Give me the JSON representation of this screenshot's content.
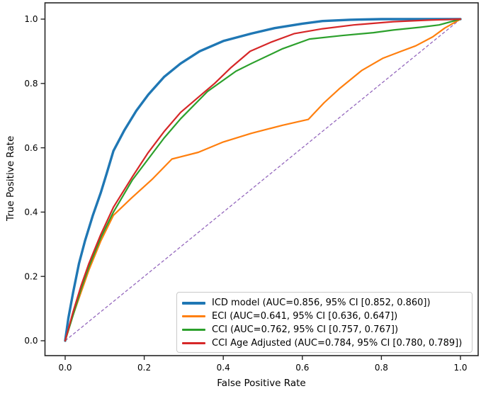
{
  "figure": {
    "background": "#ffffff",
    "spine_color": "#262626",
    "text_color": "#000000"
  },
  "chart_data": {
    "type": "line",
    "title": "",
    "xlabel": "False Positive Rate",
    "ylabel": "True Positive Rate",
    "xlim": [
      -0.05,
      1.05
    ],
    "ylim": [
      -0.05,
      1.05
    ],
    "grid": false,
    "legend_position": "lower right",
    "xticks": {
      "values": [
        0,
        0.2,
        0.4,
        0.6,
        0.8,
        1.0
      ],
      "labels": [
        "0.0",
        "0.2",
        "0.4",
        "0.6",
        "0.8",
        "1.0"
      ]
    },
    "yticks": {
      "values": [
        0,
        0.2,
        0.4,
        0.6,
        0.8,
        1.0
      ],
      "labels": [
        "0.0",
        "0.2",
        "0.4",
        "0.6",
        "0.8",
        "1.0"
      ]
    },
    "reference_line": {
      "name": "chance-diagonal",
      "style": "dashed",
      "color": "#9467bd",
      "line_width": 1.3,
      "points": [
        [
          0,
          0
        ],
        [
          1,
          1
        ]
      ]
    },
    "series": [
      {
        "name": "ICD model",
        "label": "ICD model (AUC=0.856, 95% CI [0.852, 0.860])",
        "auc": 0.856,
        "ci": [
          0.852,
          0.86
        ],
        "color": "#1f77b4",
        "line_width": 3.4,
        "points": [
          [
            0,
            0
          ],
          [
            0.008,
            0.07
          ],
          [
            0.02,
            0.15
          ],
          [
            0.035,
            0.24
          ],
          [
            0.05,
            0.31
          ],
          [
            0.07,
            0.39
          ],
          [
            0.09,
            0.46
          ],
          [
            0.105,
            0.52
          ],
          [
            0.122,
            0.59
          ],
          [
            0.15,
            0.655
          ],
          [
            0.18,
            0.715
          ],
          [
            0.21,
            0.765
          ],
          [
            0.25,
            0.82
          ],
          [
            0.292,
            0.862
          ],
          [
            0.34,
            0.9
          ],
          [
            0.4,
            0.932
          ],
          [
            0.471,
            0.955
          ],
          [
            0.53,
            0.972
          ],
          [
            0.6,
            0.986
          ],
          [
            0.651,
            0.994
          ],
          [
            0.72,
            0.998
          ],
          [
            0.8,
            1
          ],
          [
            1,
            1
          ]
        ]
      },
      {
        "name": "ECI",
        "label": "ECI (AUC=0.641, 95% CI [0.636, 0.647])",
        "auc": 0.641,
        "ci": [
          0.636,
          0.647
        ],
        "color": "#ff7f0e",
        "line_width": 2.2,
        "points": [
          [
            0,
            0
          ],
          [
            0.02,
            0.08
          ],
          [
            0.04,
            0.15
          ],
          [
            0.06,
            0.22
          ],
          [
            0.09,
            0.31
          ],
          [
            0.122,
            0.39
          ],
          [
            0.167,
            0.443
          ],
          [
            0.22,
            0.502
          ],
          [
            0.27,
            0.565
          ],
          [
            0.337,
            0.586
          ],
          [
            0.4,
            0.618
          ],
          [
            0.471,
            0.645
          ],
          [
            0.55,
            0.67
          ],
          [
            0.615,
            0.688
          ],
          [
            0.655,
            0.74
          ],
          [
            0.695,
            0.785
          ],
          [
            0.75,
            0.84
          ],
          [
            0.803,
            0.878
          ],
          [
            0.85,
            0.9
          ],
          [
            0.887,
            0.917
          ],
          [
            0.93,
            0.945
          ],
          [
            0.96,
            0.972
          ],
          [
            1,
            1
          ]
        ]
      },
      {
        "name": "CCI",
        "label": "CCI (AUC=0.762, 95% CI [0.757, 0.767])",
        "auc": 0.762,
        "ci": [
          0.757,
          0.767
        ],
        "color": "#2ca02c",
        "line_width": 2.2,
        "points": [
          [
            0,
            0
          ],
          [
            0.02,
            0.08
          ],
          [
            0.04,
            0.16
          ],
          [
            0.06,
            0.23
          ],
          [
            0.09,
            0.32
          ],
          [
            0.122,
            0.4
          ],
          [
            0.17,
            0.5
          ],
          [
            0.21,
            0.565
          ],
          [
            0.25,
            0.63
          ],
          [
            0.292,
            0.69
          ],
          [
            0.36,
            0.775
          ],
          [
            0.432,
            0.838
          ],
          [
            0.471,
            0.862
          ],
          [
            0.55,
            0.908
          ],
          [
            0.618,
            0.938
          ],
          [
            0.7,
            0.949
          ],
          [
            0.78,
            0.958
          ],
          [
            0.83,
            0.966
          ],
          [
            0.9,
            0.975
          ],
          [
            0.946,
            0.982
          ],
          [
            1,
            1
          ]
        ]
      },
      {
        "name": "CCI Age Adjusted",
        "label": "CCI Age Adjusted (AUC=0.784, 95% CI [0.780, 0.789])",
        "auc": 0.784,
        "ci": [
          0.78,
          0.789
        ],
        "color": "#d62728",
        "line_width": 2.2,
        "points": [
          [
            0,
            0
          ],
          [
            0.02,
            0.09
          ],
          [
            0.04,
            0.17
          ],
          [
            0.06,
            0.24
          ],
          [
            0.09,
            0.33
          ],
          [
            0.122,
            0.415
          ],
          [
            0.17,
            0.51
          ],
          [
            0.21,
            0.585
          ],
          [
            0.25,
            0.65
          ],
          [
            0.292,
            0.71
          ],
          [
            0.335,
            0.755
          ],
          [
            0.378,
            0.8
          ],
          [
            0.42,
            0.85
          ],
          [
            0.468,
            0.9
          ],
          [
            0.52,
            0.928
          ],
          [
            0.58,
            0.955
          ],
          [
            0.651,
            0.97
          ],
          [
            0.73,
            0.982
          ],
          [
            0.83,
            0.992
          ],
          [
            0.92,
            0.997
          ],
          [
            1,
            1
          ]
        ]
      }
    ]
  }
}
